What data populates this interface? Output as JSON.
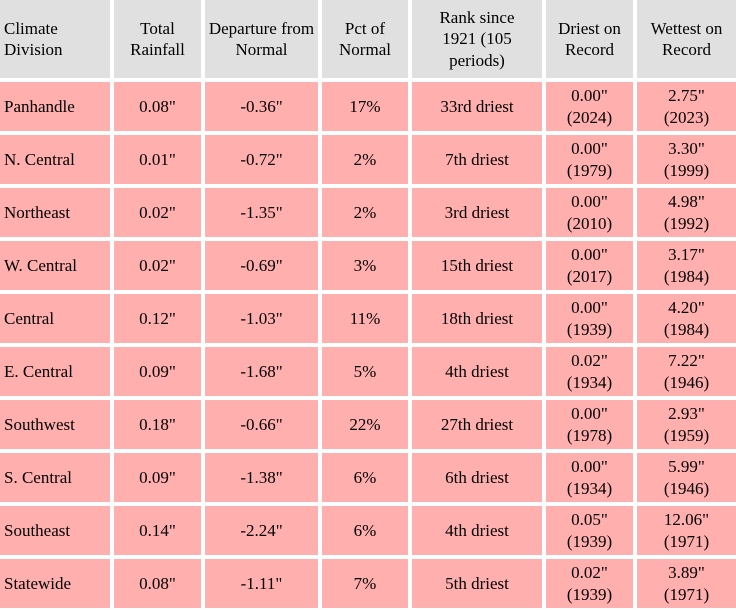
{
  "chart_data": {
    "type": "table",
    "columns": [
      "Climate Division",
      "Total Rainfall",
      "Departure from Normal",
      "Pct of Normal",
      "Rank since 1921 (105 periods)",
      "Driest on Record",
      "Wettest on Record"
    ],
    "rows": [
      {
        "division": "Panhandle",
        "total": "0.08\"",
        "departure": "-0.36\"",
        "pct": "17%",
        "rank": "33rd driest",
        "driest_value": "0.00\"",
        "driest_year": "(2024)",
        "wettest_value": "2.75\"",
        "wettest_year": "(2023)"
      },
      {
        "division": "N. Central",
        "total": "0.01\"",
        "departure": "-0.72\"",
        "pct": "2%",
        "rank": "7th driest",
        "driest_value": "0.00\"",
        "driest_year": "(1979)",
        "wettest_value": "3.30\"",
        "wettest_year": "(1999)"
      },
      {
        "division": "Northeast",
        "total": "0.02\"",
        "departure": "-1.35\"",
        "pct": "2%",
        "rank": "3rd driest",
        "driest_value": "0.00\"",
        "driest_year": "(2010)",
        "wettest_value": "4.98\"",
        "wettest_year": "(1992)"
      },
      {
        "division": "W. Central",
        "total": "0.02\"",
        "departure": "-0.69\"",
        "pct": "3%",
        "rank": "15th driest",
        "driest_value": "0.00\"",
        "driest_year": "(2017)",
        "wettest_value": "3.17\"",
        "wettest_year": "(1984)"
      },
      {
        "division": "Central",
        "total": "0.12\"",
        "departure": "-1.03\"",
        "pct": "11%",
        "rank": "18th driest",
        "driest_value": "0.00\"",
        "driest_year": "(1939)",
        "wettest_value": "4.20\"",
        "wettest_year": "(1984)"
      },
      {
        "division": "E. Central",
        "total": "0.09\"",
        "departure": "-1.68\"",
        "pct": "5%",
        "rank": "4th driest",
        "driest_value": "0.02\"",
        "driest_year": "(1934)",
        "wettest_value": "7.22\"",
        "wettest_year": "(1946)"
      },
      {
        "division": "Southwest",
        "total": "0.18\"",
        "departure": "-0.66\"",
        "pct": "22%",
        "rank": "27th driest",
        "driest_value": "0.00\"",
        "driest_year": "(1978)",
        "wettest_value": "2.93\"",
        "wettest_year": "(1959)"
      },
      {
        "division": "S. Central",
        "total": "0.09\"",
        "departure": "-1.38\"",
        "pct": "6%",
        "rank": "6th driest",
        "driest_value": "0.00\"",
        "driest_year": "(1934)",
        "wettest_value": "5.99\"",
        "wettest_year": "(1946)"
      },
      {
        "division": "Southeast",
        "total": "0.14\"",
        "departure": "-2.24\"",
        "pct": "6%",
        "rank": "4th driest",
        "driest_value": "0.05\"",
        "driest_year": "(1939)",
        "wettest_value": "12.06\"",
        "wettest_year": "(1971)"
      },
      {
        "division": "Statewide",
        "total": "0.08\"",
        "departure": "-1.11\"",
        "pct": "7%",
        "rank": "5th driest",
        "driest_value": "0.02\"",
        "driest_year": "(1939)",
        "wettest_value": "3.89\"",
        "wettest_year": "(1971)"
      }
    ]
  },
  "colors": {
    "header_bg": "#e0e0e0",
    "cell_bg": "#ffafae",
    "gap_bg": "#ffffff",
    "text": "#000000"
  }
}
